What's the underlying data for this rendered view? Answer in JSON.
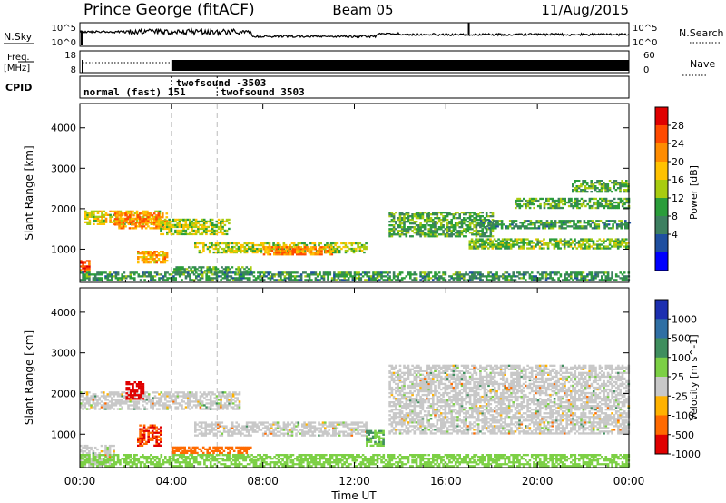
{
  "header": {
    "station": "Prince George (fitACF)",
    "beam": "Beam 05",
    "date": "11/Aug/2015"
  },
  "sky_panel": {
    "left_label": "N.Sky",
    "right_label": "N.Search",
    "left_ticks": [
      "10^5",
      "10^0"
    ],
    "right_ticks": [
      "10^5",
      "10^0"
    ]
  },
  "freq_panel": {
    "left_label": "Freq.",
    "left_unit": "[MHz]",
    "right_label": "Nave",
    "left_ticks": [
      "18",
      "8"
    ],
    "right_ticks": [
      "60",
      "0"
    ]
  },
  "cpid": {
    "label": "CPID",
    "entries": [
      {
        "text": "normal (fast) 151",
        "row": 1
      },
      {
        "text": "twofsound -3503",
        "row": 0
      },
      {
        "text": "twofsound 3503",
        "row": 1
      }
    ]
  },
  "x_axis": {
    "label": "Time UT",
    "ticks": [
      "00:00",
      "04:00",
      "08:00",
      "12:00",
      "16:00",
      "20:00",
      "00:00"
    ]
  },
  "power_colorbar": {
    "label": "Power [dB]",
    "ticks": [
      "28",
      "24",
      "20",
      "16",
      "12",
      "8",
      "4"
    ],
    "colors": [
      "#e00000",
      "#ff4a00",
      "#ff8c00",
      "#ffc200",
      "#a8cc10",
      "#2a9d3a",
      "#3d7f60",
      "#1f4fa0",
      "#0000ff"
    ]
  },
  "velocity_colorbar": {
    "label": "Velocity [m s^-1]",
    "ticks": [
      "1000",
      "500",
      "100",
      "25",
      "-25",
      "-100",
      "-500",
      "-1000"
    ],
    "colors": [
      "#1c2fb0",
      "#2f6fa4",
      "#3f8e5e",
      "#7cd045",
      "#c8c8c8",
      "#ffb200",
      "#ff6a00",
      "#e00000"
    ]
  },
  "chart_data": [
    {
      "type": "heatmap",
      "title": "",
      "xlabel": "",
      "ylabel": "Slant Range [km]",
      "xlim": [
        0,
        24
      ],
      "ylim": [
        180,
        4600
      ],
      "yticks": [
        1000,
        2000,
        3000,
        4000
      ],
      "value_label": "Power [dB]",
      "echo_regions": [
        {
          "t0": 0.0,
          "t1": 0.4,
          "r0": 420,
          "r1": 700,
          "power": 26
        },
        {
          "t0": 0.2,
          "t1": 3.5,
          "r0": 1600,
          "r1": 1950,
          "power": 16
        },
        {
          "t0": 1.5,
          "t1": 3.8,
          "r0": 1500,
          "r1": 1900,
          "power": 22
        },
        {
          "t0": 3.5,
          "t1": 6.5,
          "r0": 1350,
          "r1": 1750,
          "power": 14
        },
        {
          "t0": 5.0,
          "t1": 12.5,
          "r0": 900,
          "r1": 1150,
          "power": 14
        },
        {
          "t0": 8.0,
          "t1": 11.0,
          "r0": 850,
          "r1": 1050,
          "power": 22
        },
        {
          "t0": 2.5,
          "t1": 3.8,
          "r0": 650,
          "r1": 950,
          "power": 20
        },
        {
          "t0": 4.0,
          "t1": 7.5,
          "r0": 400,
          "r1": 560,
          "power": 10
        },
        {
          "t0": 13.5,
          "t1": 18.0,
          "r0": 1300,
          "r1": 1900,
          "power": 10
        },
        {
          "t0": 17.0,
          "t1": 24.0,
          "r0": 1000,
          "r1": 1250,
          "power": 12
        },
        {
          "t0": 17.5,
          "t1": 24.0,
          "r0": 1500,
          "r1": 1700,
          "power": 8
        },
        {
          "t0": 19.0,
          "t1": 24.0,
          "r0": 2000,
          "r1": 2250,
          "power": 10
        },
        {
          "t0": 21.5,
          "t1": 24.0,
          "r0": 2400,
          "r1": 2700,
          "power": 10
        },
        {
          "t0": 0.0,
          "t1": 24.0,
          "r0": 220,
          "r1": 420,
          "power": 8
        }
      ]
    },
    {
      "type": "heatmap",
      "title": "",
      "xlabel": "Time UT",
      "ylabel": "Slant Range [km]",
      "xlim": [
        0,
        24
      ],
      "ylim": [
        180,
        4600
      ],
      "yticks": [
        1000,
        2000,
        3000,
        4000
      ],
      "value_label": "Velocity [m s^-1]",
      "echo_regions": [
        {
          "t0": 0.0,
          "t1": 7.0,
          "r0": 1600,
          "r1": 2050,
          "velocity": 0
        },
        {
          "t0": 0.0,
          "t1": 1.5,
          "r0": 200,
          "r1": 700,
          "velocity": 0
        },
        {
          "t0": 2.0,
          "t1": 2.8,
          "r0": 1850,
          "r1": 2300,
          "velocity": -1000
        },
        {
          "t0": 2.5,
          "t1": 3.5,
          "r0": 700,
          "r1": 1200,
          "velocity": -500
        },
        {
          "t0": 4.0,
          "t1": 7.5,
          "r0": 520,
          "r1": 700,
          "velocity": -300
        },
        {
          "t0": 5.0,
          "t1": 12.5,
          "r0": 950,
          "r1": 1300,
          "velocity": 0
        },
        {
          "t0": 12.5,
          "t1": 13.3,
          "r0": 700,
          "r1": 1100,
          "velocity": 100
        },
        {
          "t0": 13.5,
          "t1": 24.0,
          "r0": 1000,
          "r1": 2700,
          "velocity": 0
        },
        {
          "t0": 0.0,
          "t1": 24.0,
          "r0": 200,
          "r1": 500,
          "velocity": 50
        }
      ]
    }
  ]
}
